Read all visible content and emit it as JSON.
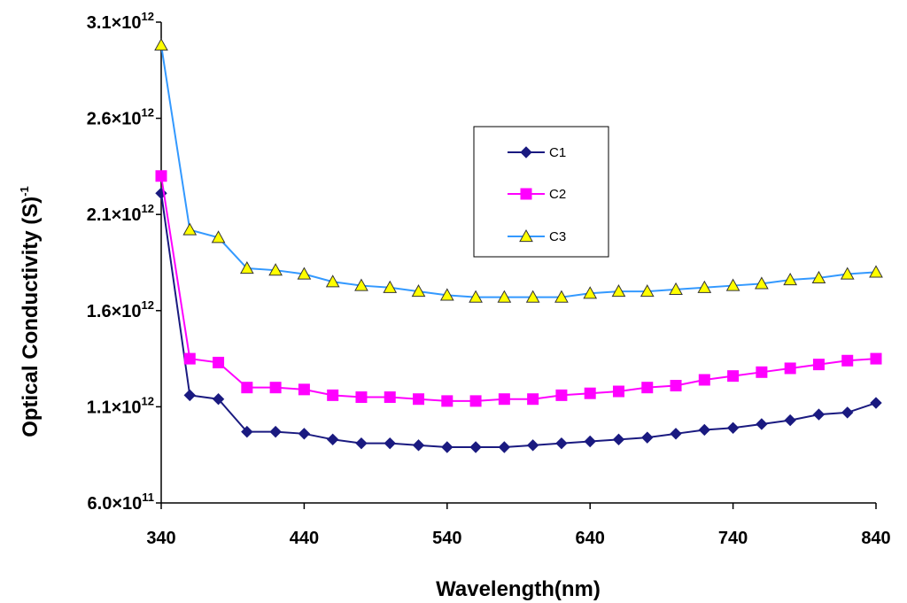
{
  "chart_data": {
    "type": "line",
    "title": "",
    "xlabel": "Wavelength(nm)",
    "ylabel": "Optical Conductivity (S)",
    "ylabel_superscript": "-1",
    "xlim": [
      340,
      840
    ],
    "ylim": [
      600000000000,
      3100000000000
    ],
    "x_ticks": [
      340,
      440,
      540,
      640,
      740,
      840
    ],
    "y_ticks": [
      {
        "value": 600000000000,
        "mantissa": "6.0×10",
        "exp": "11"
      },
      {
        "value": 1100000000000,
        "mantissa": "1.1×10",
        "exp": "12"
      },
      {
        "value": 1600000000000,
        "mantissa": "1.6×10",
        "exp": "12"
      },
      {
        "value": 2100000000000,
        "mantissa": "2.1×10",
        "exp": "12"
      },
      {
        "value": 2600000000000,
        "mantissa": "2.6×10",
        "exp": "12"
      },
      {
        "value": 3100000000000,
        "mantissa": "3.1×10",
        "exp": "12"
      }
    ],
    "grid": false,
    "legend_position": "center",
    "x": [
      340,
      360,
      380,
      400,
      420,
      440,
      460,
      480,
      500,
      520,
      540,
      560,
      580,
      600,
      620,
      640,
      660,
      680,
      700,
      720,
      740,
      760,
      780,
      800,
      820,
      840
    ],
    "series": [
      {
        "name": "C1",
        "color": "#1a1a80",
        "marker": "diamond",
        "values": [
          2210000000000.0,
          1160000000000.0,
          1140000000000.0,
          970000000000.0,
          970000000000.0,
          960000000000.0,
          930000000000.0,
          910000000000.0,
          910000000000.0,
          900000000000.0,
          890000000000.0,
          890000000000.0,
          890000000000.0,
          900000000000.0,
          910000000000.0,
          920000000000.0,
          930000000000.0,
          940000000000.0,
          960000000000.0,
          980000000000.0,
          990000000000.0,
          1010000000000.0,
          1030000000000.0,
          1060000000000.0,
          1070000000000.0,
          1120000000000.0
        ]
      },
      {
        "name": "C2",
        "color": "#ff00ff",
        "marker": "square",
        "values": [
          2300000000000.0,
          1350000000000.0,
          1330000000000.0,
          1200000000000.0,
          1200000000000.0,
          1190000000000.0,
          1160000000000.0,
          1150000000000.0,
          1150000000000.0,
          1140000000000.0,
          1130000000000.0,
          1130000000000.0,
          1140000000000.0,
          1140000000000.0,
          1160000000000.0,
          1170000000000.0,
          1180000000000.0,
          1200000000000.0,
          1210000000000.0,
          1240000000000.0,
          1260000000000.0,
          1280000000000.0,
          1300000000000.0,
          1320000000000.0,
          1340000000000.0,
          1350000000000.0
        ]
      },
      {
        "name": "C3",
        "color": "#3399ff",
        "marker": "triangle",
        "values": [
          2980000000000.0,
          2020000000000.0,
          1980000000000.0,
          1820000000000.0,
          1810000000000.0,
          1790000000000.0,
          1750000000000.0,
          1730000000000.0,
          1720000000000.0,
          1700000000000.0,
          1680000000000.0,
          1670000000000.0,
          1670000000000.0,
          1670000000000.0,
          1670000000000.0,
          1690000000000.0,
          1700000000000.0,
          1700000000000.0,
          1710000000000.0,
          1720000000000.0,
          1730000000000.0,
          1740000000000.0,
          1760000000000.0,
          1770000000000.0,
          1790000000000.0,
          1800000000000.0
        ]
      }
    ]
  }
}
